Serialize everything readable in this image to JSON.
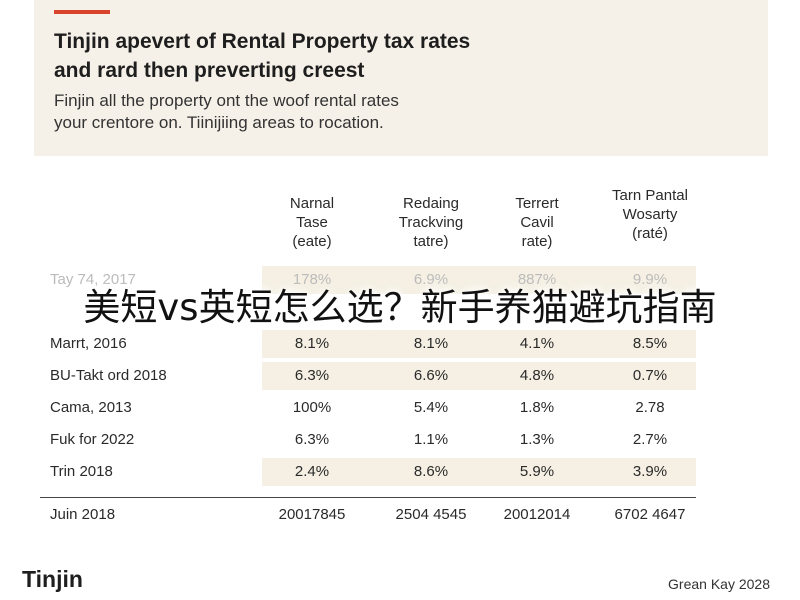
{
  "header": {
    "title_lines": [
      "Tinjin apevert of Rental Property tax rates",
      "and rard then preverting creest"
    ],
    "subtitle_lines": [
      "Finjin all the property ont the woof rental rates",
      "your crentore on. Tiinijiing areas to rocation."
    ],
    "accent_color": "#d9452b",
    "band_color": "#f6f1e8"
  },
  "table": {
    "columns": [
      [
        "Narnal",
        "Tase",
        "(eate)"
      ],
      [
        "Redaing",
        "Trackving",
        "tatre)"
      ],
      [
        "Terrert",
        "Cavil",
        "rate)"
      ],
      [
        "Tarn Pantal",
        "Wosarty",
        "(raté)"
      ]
    ],
    "rows": [
      {
        "label": "Tay 74, 2017",
        "values": [
          "178%",
          "6.9%",
          "887%",
          "9.9%"
        ]
      },
      {
        "label": "",
        "values": [
          "",
          "1.6",
          "",
          ""
        ]
      },
      {
        "label": "Marrt, 2016",
        "values": [
          "8.1%",
          "8.1%",
          "4.1%",
          "8.5%"
        ]
      },
      {
        "label": "BU-Takt ord 2018",
        "values": [
          "6.3%",
          "6.6%",
          "4.8%",
          "0.7%"
        ]
      },
      {
        "label": "Cama, 2013",
        "values": [
          "100%",
          "5.4%",
          "1.8%",
          "2.78"
        ]
      },
      {
        "label": "Fuk for 2022",
        "values": [
          "6.3%",
          "1.1%",
          "1.3%",
          "2.7%"
        ]
      },
      {
        "label": "Trin 2018",
        "values": [
          "2.4%",
          "8.6%",
          "5.9%",
          "3.9%"
        ]
      }
    ],
    "total": {
      "label": "Juin 2018",
      "values": [
        "20017845",
        "2504 4545",
        "20012014",
        "6702 4647"
      ]
    },
    "shade_color": "#f5f0e3"
  },
  "overlay": {
    "text": "美短vs英短怎么选？新手养猫避坑指南"
  },
  "footer": {
    "brand": "Tinjin",
    "credit": "Grean Kay 2028"
  }
}
